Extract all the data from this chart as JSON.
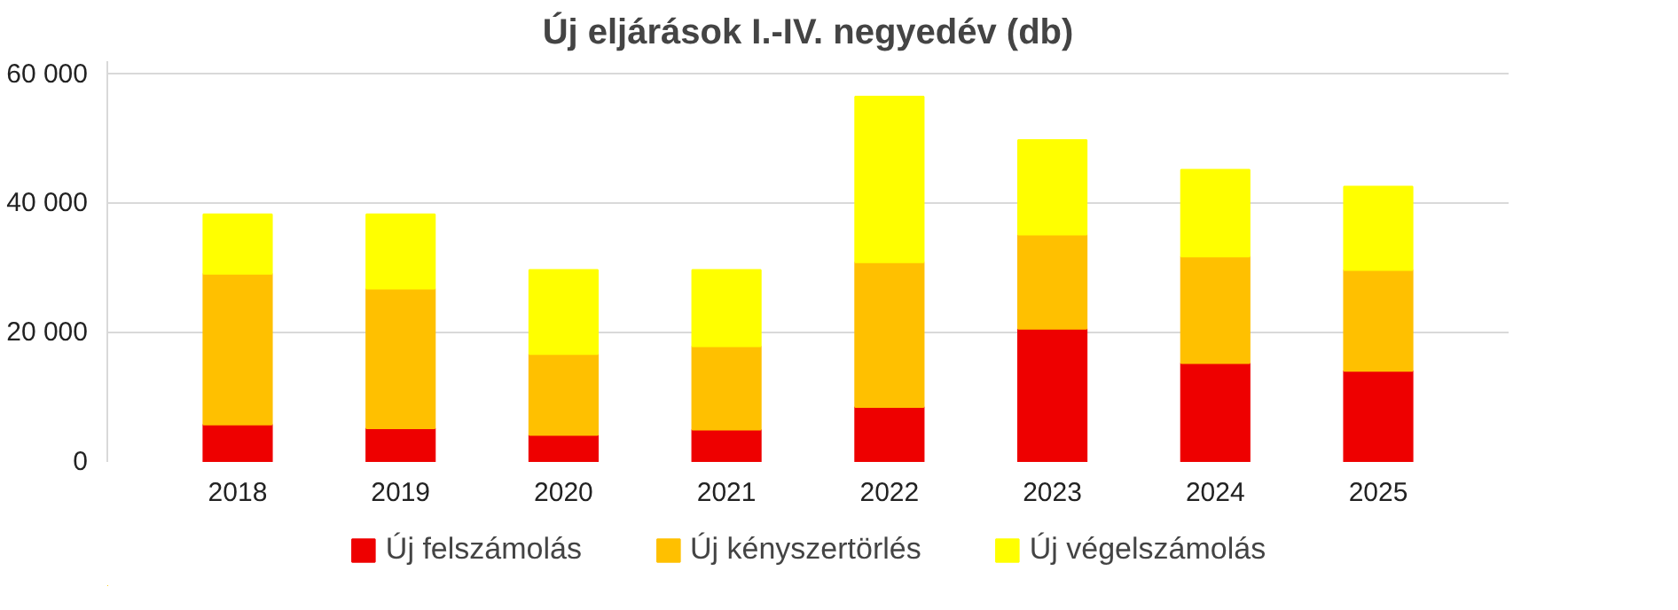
{
  "chart_data": {
    "type": "bar",
    "title": "Új eljárások I.-IV. negyedév (db)",
    "stacked": true,
    "categories": [
      "2018",
      "2019",
      "2020",
      "2021",
      "2022",
      "2023",
      "2024",
      "2025"
    ],
    "series": [
      {
        "name": "Új felszámolás",
        "color": "#ee0000",
        "values": [
          5800,
          5200,
          4200,
          5000,
          8500,
          20600,
          15300,
          14100
        ]
      },
      {
        "name": "Új kényszertörlés",
        "color": "#ffc000",
        "values": [
          23300,
          21600,
          12500,
          12900,
          22400,
          14600,
          16500,
          15600
        ]
      },
      {
        "name": "Új végelszámolás",
        "color": "#ffff00",
        "values": [
          9200,
          11500,
          13000,
          11800,
          25600,
          14600,
          13400,
          12900
        ]
      }
    ],
    "ylim": [
      0,
      62000
    ],
    "yticks": [
      0,
      {
        "value": 20000,
        "label": "20 000"
      },
      {
        "value": 40000,
        "label": "40 000"
      },
      {
        "value": 60000,
        "label": "60 000"
      }
    ],
    "grid": "y",
    "legend": "bottom"
  }
}
